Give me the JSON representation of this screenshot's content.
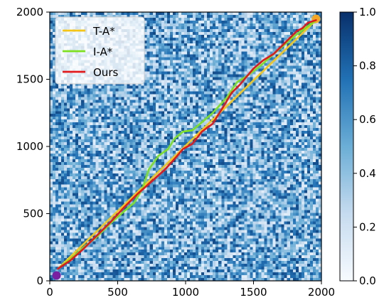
{
  "chart_data": {
    "type": "line",
    "title": "",
    "xlabel": "",
    "ylabel": "",
    "xlim": [
      0,
      2000
    ],
    "ylim": [
      0,
      2000
    ],
    "x_ticks": [
      0,
      500,
      1000,
      1500,
      2000
    ],
    "y_ticks": [
      0,
      500,
      1000,
      1500,
      2000
    ],
    "grid": false,
    "legend": "upper-left",
    "background": {
      "type": "heatmap",
      "description_values": "random noise field",
      "colormap": "Blues",
      "range": [
        0,
        1
      ]
    },
    "colorbar": {
      "range": [
        0.0,
        1.0
      ],
      "ticks": [
        "0.0",
        "0.2",
        "0.4",
        "0.6",
        "0.8",
        "1.0"
      ]
    },
    "start_marker": {
      "x": 50,
      "y": 40,
      "color": "#7a1fa2"
    },
    "goal_marker": {
      "x": 1960,
      "y": 1950,
      "color": "#f5a623"
    },
    "series": [
      {
        "name": "T-A*",
        "color": "#f5c518",
        "points": [
          [
            60,
            90
          ],
          [
            1960,
            1940
          ]
        ]
      },
      {
        "name": "I-A*",
        "color": "#7ee020",
        "points": [
          [
            60,
            90
          ],
          [
            150,
            160
          ],
          [
            250,
            250
          ],
          [
            350,
            330
          ],
          [
            450,
            430
          ],
          [
            550,
            520
          ],
          [
            620,
            580
          ],
          [
            680,
            680
          ],
          [
            730,
            830
          ],
          [
            800,
            930
          ],
          [
            870,
            980
          ],
          [
            920,
            1060
          ],
          [
            980,
            1110
          ],
          [
            1050,
            1120
          ],
          [
            1120,
            1180
          ],
          [
            1200,
            1250
          ],
          [
            1300,
            1360
          ],
          [
            1380,
            1480
          ],
          [
            1460,
            1530
          ],
          [
            1550,
            1600
          ],
          [
            1640,
            1680
          ],
          [
            1720,
            1750
          ],
          [
            1800,
            1820
          ],
          [
            1880,
            1880
          ],
          [
            1960,
            1940
          ]
        ]
      },
      {
        "name": "Ours",
        "color": "#e31a1c",
        "points": [
          [
            60,
            90
          ],
          [
            150,
            150
          ],
          [
            250,
            240
          ],
          [
            350,
            340
          ],
          [
            450,
            440
          ],
          [
            550,
            550
          ],
          [
            650,
            650
          ],
          [
            750,
            740
          ],
          [
            850,
            830
          ],
          [
            930,
            920
          ],
          [
            980,
            980
          ],
          [
            1050,
            1020
          ],
          [
            1120,
            1110
          ],
          [
            1200,
            1170
          ],
          [
            1280,
            1300
          ],
          [
            1340,
            1400
          ],
          [
            1400,
            1460
          ],
          [
            1450,
            1520
          ],
          [
            1500,
            1580
          ],
          [
            1570,
            1640
          ],
          [
            1650,
            1690
          ],
          [
            1720,
            1760
          ],
          [
            1780,
            1820
          ],
          [
            1820,
            1860
          ],
          [
            1860,
            1880
          ],
          [
            1900,
            1920
          ],
          [
            1960,
            1940
          ]
        ]
      }
    ]
  }
}
